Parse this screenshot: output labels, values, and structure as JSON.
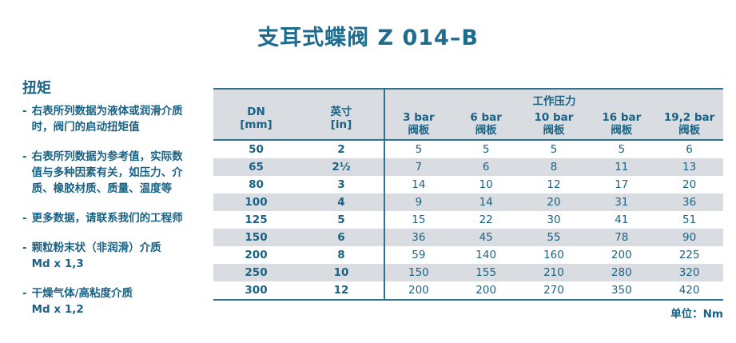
{
  "page": {
    "title": "支耳式蝶阀 Z 014–B",
    "unit_label": "单位：Nm"
  },
  "colors": {
    "accent_text": "#1a6385",
    "title_text": "#1e6b90",
    "table_line": "#2e7390",
    "row_stripe": "#d9dce1",
    "background": "#ffffff"
  },
  "notes": {
    "heading": "扭矩",
    "items": [
      {
        "marker": "-",
        "text": "右表所列数据为液体或润滑介质\n时，阀门的启动扭矩值"
      },
      {
        "marker": "-",
        "text": "右表所列数据为参考值，实际数\n值与多种因素有关，如压力、介\n质、橡胶材质、质量、温度等"
      },
      {
        "marker": "-",
        "text": "更多数据，请联系我们的工程师"
      },
      {
        "marker": "-",
        "text": "颗粒粉末状（非润滑）介质\nMd x 1,3"
      },
      {
        "marker": "-",
        "text": "干燥气体/高粘度介质\nMd x 1,2"
      }
    ]
  },
  "table": {
    "col1_header": {
      "line1": "DN",
      "line2": "[mm]"
    },
    "col2_header": {
      "line1": "英寸",
      "line2": "[in]"
    },
    "group_header": "工作压力",
    "pressure_headers": [
      {
        "line1": "3 bar",
        "line2": "阀板"
      },
      {
        "line1": "6 bar",
        "line2": "阀板"
      },
      {
        "line1": "10 bar",
        "line2": "阀板"
      },
      {
        "line1": "16 bar",
        "line2": "阀板"
      },
      {
        "line1": "19,2 bar",
        "line2": "阀板"
      }
    ],
    "rows": [
      {
        "dn": "50",
        "inch": "2",
        "values": [
          "5",
          "5",
          "5",
          "5",
          "6"
        ]
      },
      {
        "dn": "65",
        "inch": "2½",
        "values": [
          "7",
          "6",
          "8",
          "11",
          "13"
        ]
      },
      {
        "dn": "80",
        "inch": "3",
        "values": [
          "14",
          "10",
          "12",
          "17",
          "20"
        ]
      },
      {
        "dn": "100",
        "inch": "4",
        "values": [
          "9",
          "14",
          "20",
          "31",
          "36"
        ]
      },
      {
        "dn": "125",
        "inch": "5",
        "values": [
          "15",
          "22",
          "30",
          "41",
          "51"
        ]
      },
      {
        "dn": "150",
        "inch": "6",
        "values": [
          "36",
          "45",
          "55",
          "78",
          "90"
        ]
      },
      {
        "dn": "200",
        "inch": "8",
        "values": [
          "59",
          "140",
          "160",
          "200",
          "225"
        ]
      },
      {
        "dn": "250",
        "inch": "10",
        "values": [
          "150",
          "155",
          "210",
          "280",
          "320"
        ]
      },
      {
        "dn": "300",
        "inch": "12",
        "values": [
          "200",
          "200",
          "270",
          "350",
          "420"
        ]
      }
    ]
  }
}
